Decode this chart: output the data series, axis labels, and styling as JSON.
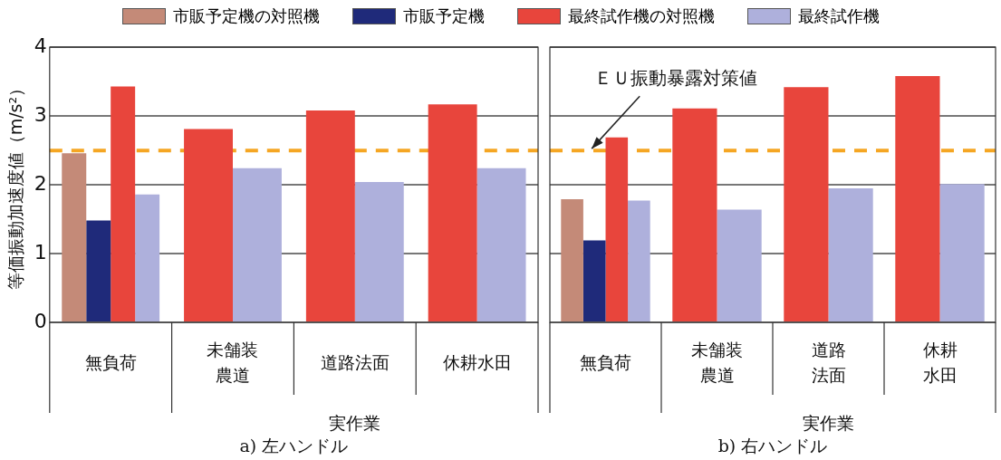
{
  "chart_data": [
    {
      "type": "bar",
      "title": "a) 左ハンドル",
      "ylabel": "等価振動加速度値（m/s²）",
      "categories": [
        "無負荷",
        "未舗装農道",
        "道路法面",
        "休耕水田"
      ],
      "series": [
        {
          "name": "市販予定機の対照機",
          "color": "#c48a78",
          "values": [
            2.46,
            null,
            null,
            null
          ]
        },
        {
          "name": "市販予定機",
          "color": "#1f2a7a",
          "values": [
            1.48,
            null,
            null,
            null
          ]
        },
        {
          "name": "最終試作機の対照機",
          "color": "#e8453c",
          "values": [
            3.43,
            2.81,
            3.08,
            3.17
          ]
        },
        {
          "name": "最終試作機",
          "color": "#aeb0dc",
          "values": [
            1.86,
            2.24,
            2.04,
            2.24
          ]
        }
      ],
      "ylim": [
        0,
        4
      ],
      "yticks": [
        0,
        1,
        2,
        3,
        4
      ],
      "grid": "y",
      "legend": "top",
      "ref_lines": [
        {
          "axis": "y",
          "value": 2.5,
          "color": "#f5a623",
          "line_style": "dashed"
        }
      ],
      "annotations": [
        "実作業"
      ]
    },
    {
      "type": "bar",
      "title": "b) 右ハンドル",
      "categories": [
        "無負荷",
        "未舗装農道",
        "道路法面",
        "休耕水田"
      ],
      "series": [
        {
          "color": "#c48a78",
          "values": [
            1.79,
            null,
            null,
            null
          ]
        },
        {
          "color": "#1f2a7a",
          "values": [
            1.19,
            null,
            null,
            null
          ]
        },
        {
          "color": "#e8453c",
          "values": [
            2.69,
            3.11,
            3.42,
            3.58
          ]
        },
        {
          "color": "#aeb0dc",
          "values": [
            1.77,
            1.64,
            1.95,
            2.01
          ]
        }
      ],
      "ylim": [
        0,
        4
      ],
      "yticks": [
        0,
        1,
        2,
        3,
        4
      ],
      "grid": "y",
      "tick_labels": "x",
      "ref_lines": [
        {
          "axis": "y",
          "value": 2.5,
          "label": "ＥＵ振動暴露対策値",
          "color": "#f5a623",
          "line_style": "dashed"
        }
      ],
      "annotations": [
        "実作業"
      ]
    }
  ]
}
